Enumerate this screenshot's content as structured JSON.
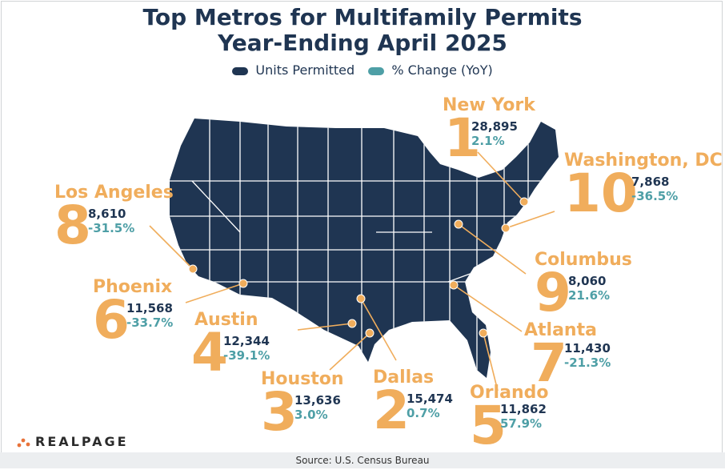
{
  "chart_data": {
    "type": "map",
    "title": "Top Metros for Multifamily Permits",
    "subtitle": "Year-Ending April 2025",
    "legend": [
      {
        "label": "Units Permitted",
        "color": "#1f3552"
      },
      {
        "label": "% Change (YoY)",
        "color": "#4e9fa6"
      }
    ],
    "metros": [
      {
        "rank": "1",
        "name": "New York",
        "units": "28,895",
        "change": "2.1%"
      },
      {
        "rank": "10",
        "name": "Washington, DC",
        "units": "7,868",
        "change": "-36.5%"
      },
      {
        "rank": "8",
        "name": "Los Angeles",
        "units": "8,610",
        "change": "-31.5%"
      },
      {
        "rank": "9",
        "name": "Columbus",
        "units": "8,060",
        "change": "21.6%"
      },
      {
        "rank": "6",
        "name": "Phoenix",
        "units": "11,568",
        "change": "-33.7%"
      },
      {
        "rank": "4",
        "name": "Austin",
        "units": "12,344",
        "change": "-39.1%"
      },
      {
        "rank": "7",
        "name": "Atlanta",
        "units": "11,430",
        "change": "-21.3%"
      },
      {
        "rank": "3",
        "name": "Houston",
        "units": "13,636",
        "change": "3.0%"
      },
      {
        "rank": "2",
        "name": "Dallas",
        "units": "15,474",
        "change": "0.7%"
      },
      {
        "rank": "5",
        "name": "Orlando",
        "units": "11,862",
        "change": "57.9%"
      }
    ],
    "colors": {
      "map_fill": "#1f3552",
      "state_border": "#ffffff",
      "accent": "#f0ad5c",
      "change": "#4e9fa6"
    }
  },
  "logo": {
    "text": "REALPAGE",
    "dot_color": "#e8733a"
  },
  "source": "Source: U.S. Census Bureau"
}
